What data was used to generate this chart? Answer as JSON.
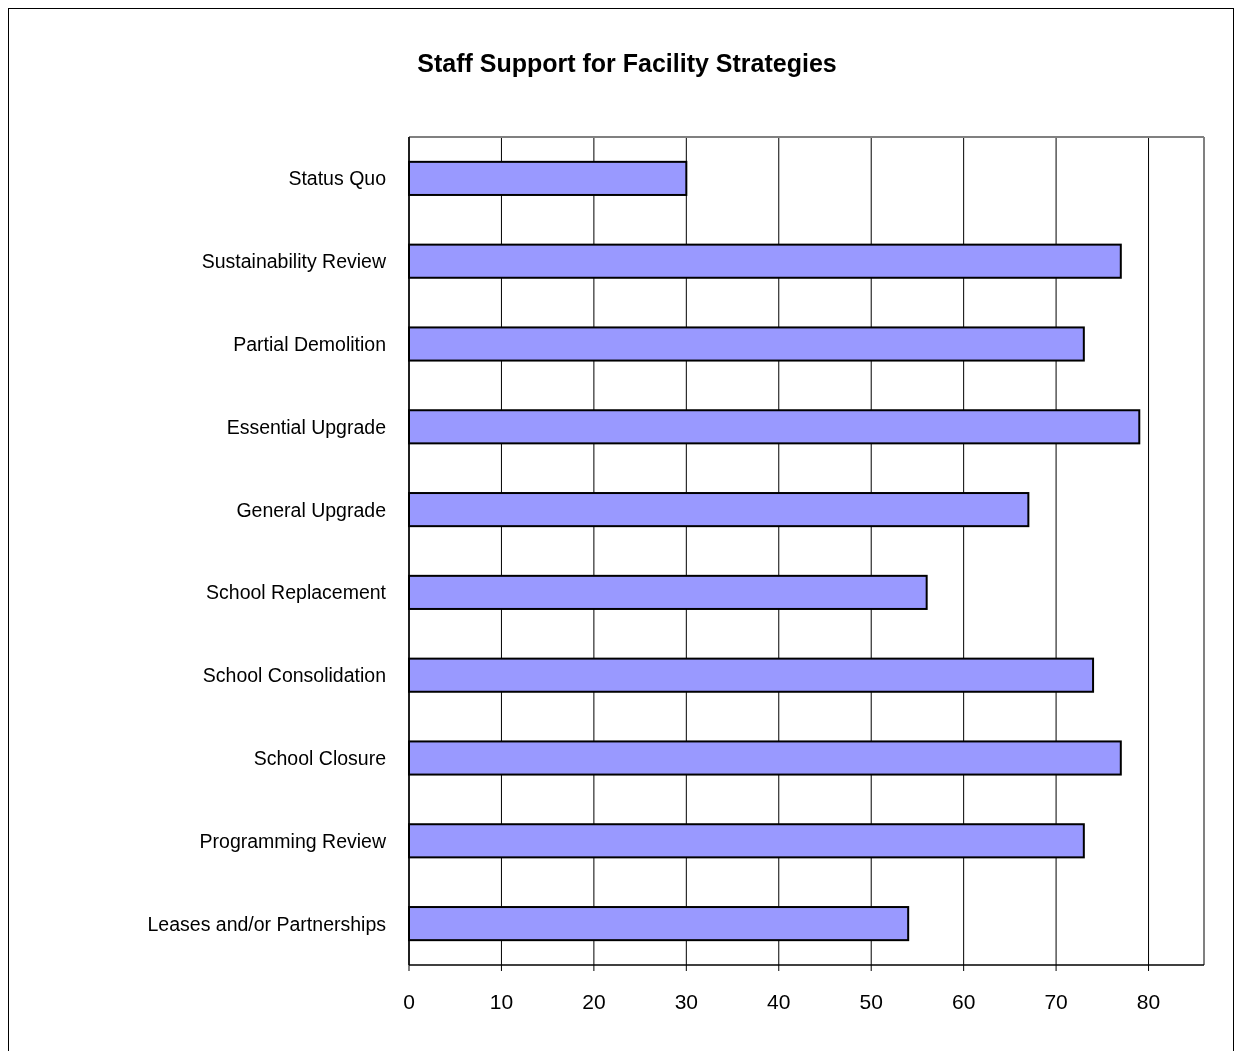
{
  "chart_data": {
    "type": "bar",
    "orientation": "horizontal",
    "title": "Staff Support for Facility Strategies",
    "categories": [
      "Status Quo",
      "Sustainability Review",
      "Partial Demolition",
      "Essential Upgrade",
      "General Upgrade",
      "School Replacement",
      "School Consolidation",
      "School Closure",
      "Programming Review",
      "Leases and/or Partnerships"
    ],
    "values": [
      30,
      77,
      73,
      79,
      67,
      56,
      74,
      77,
      73,
      54
    ],
    "color": "#9999ff",
    "xlim": [
      0,
      86
    ],
    "xticks": [
      0,
      10,
      20,
      30,
      40,
      50,
      60,
      70,
      80
    ],
    "grid": "x"
  }
}
